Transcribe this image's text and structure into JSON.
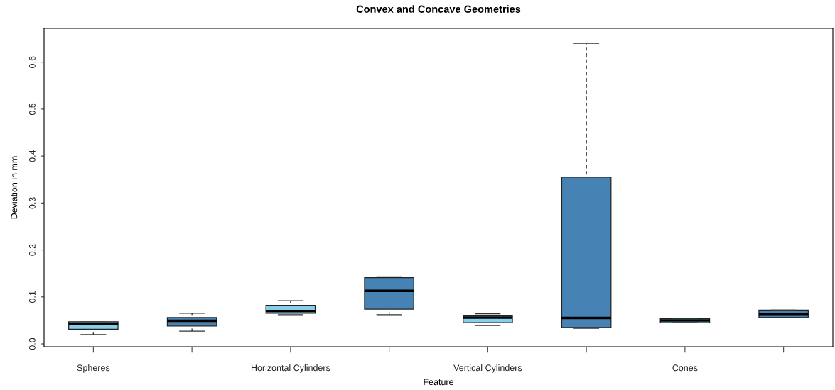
{
  "chart_data": {
    "type": "box",
    "title": "Convex and Concave Geometries",
    "xlabel": "Feature",
    "ylabel": "Deviation in mm",
    "categories": [
      "Spheres",
      null,
      "Horizontal Cylinders",
      null,
      "Vertical Cylinders",
      null,
      "Cones",
      null
    ],
    "colors": [
      "#87ceeb",
      "#4682b4",
      "#87ceeb",
      "#4682b4",
      "#87ceeb",
      "#4682b4",
      "#87ceeb",
      "#4682b4"
    ],
    "boxes": [
      {
        "low": 0.02,
        "q1": 0.031,
        "median": 0.043,
        "q3": 0.047,
        "high": 0.049
      },
      {
        "low": 0.027,
        "q1": 0.038,
        "median": 0.049,
        "q3": 0.056,
        "high": 0.065
      },
      {
        "low": 0.062,
        "q1": 0.065,
        "median": 0.07,
        "q3": 0.082,
        "high": 0.092
      },
      {
        "low": 0.062,
        "q1": 0.074,
        "median": 0.113,
        "q3": 0.141,
        "high": 0.143
      },
      {
        "low": 0.039,
        "q1": 0.045,
        "median": 0.056,
        "q3": 0.061,
        "high": 0.064
      },
      {
        "low": 0.033,
        "q1": 0.035,
        "median": 0.055,
        "q3": 0.355,
        "high": 0.64
      },
      {
        "low": 0.045,
        "q1": 0.045,
        "median": 0.05,
        "q3": 0.054,
        "high": 0.054
      },
      {
        "low": 0.056,
        "q1": 0.056,
        "median": 0.064,
        "q3": 0.072,
        "high": 0.072
      }
    ],
    "ylim": [
      -0.006,
      0.672
    ],
    "yticks": [
      {
        "value": 0,
        "label": "0.0"
      },
      0.1,
      0.2,
      0.3,
      0.4,
      0.5,
      0.6
    ],
    "grid": false
  }
}
